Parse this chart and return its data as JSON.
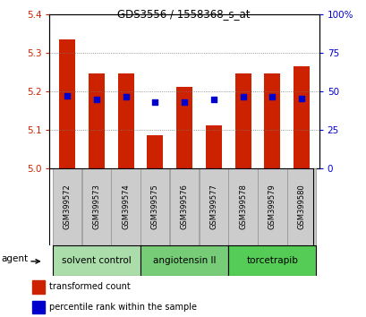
{
  "title": "GDS3556 / 1558368_s_at",
  "samples": [
    "GSM399572",
    "GSM399573",
    "GSM399574",
    "GSM399575",
    "GSM399576",
    "GSM399577",
    "GSM399578",
    "GSM399579",
    "GSM399580"
  ],
  "bar_values": [
    5.335,
    5.245,
    5.245,
    5.085,
    5.21,
    5.11,
    5.245,
    5.245,
    5.265
  ],
  "percentile_values": [
    5.188,
    5.178,
    5.185,
    5.172,
    5.172,
    5.178,
    5.185,
    5.185,
    5.182
  ],
  "bar_base": 5.0,
  "ylim": [
    5.0,
    5.4
  ],
  "left_yticks": [
    5.0,
    5.1,
    5.2,
    5.3,
    5.4
  ],
  "right_yticks": [
    0,
    25,
    50,
    75,
    100
  ],
  "bar_color": "#cc2200",
  "dot_color": "#0000cc",
  "groups": [
    {
      "label": "solvent control",
      "samples": [
        0,
        1,
        2
      ],
      "color": "#aaddaa"
    },
    {
      "label": "angiotensin II",
      "samples": [
        3,
        4,
        5
      ],
      "color": "#77cc77"
    },
    {
      "label": "torcetrapib",
      "samples": [
        6,
        7,
        8
      ],
      "color": "#55cc55"
    }
  ],
  "agent_label": "agent",
  "legend": [
    {
      "label": "transformed count",
      "color": "#cc2200"
    },
    {
      "label": "percentile rank within the sample",
      "color": "#0000cc"
    }
  ],
  "grid_color": "#777777",
  "tick_label_color_left": "#cc2200",
  "tick_label_color_right": "#0000cc",
  "dot_size": 15,
  "bar_width": 0.55
}
